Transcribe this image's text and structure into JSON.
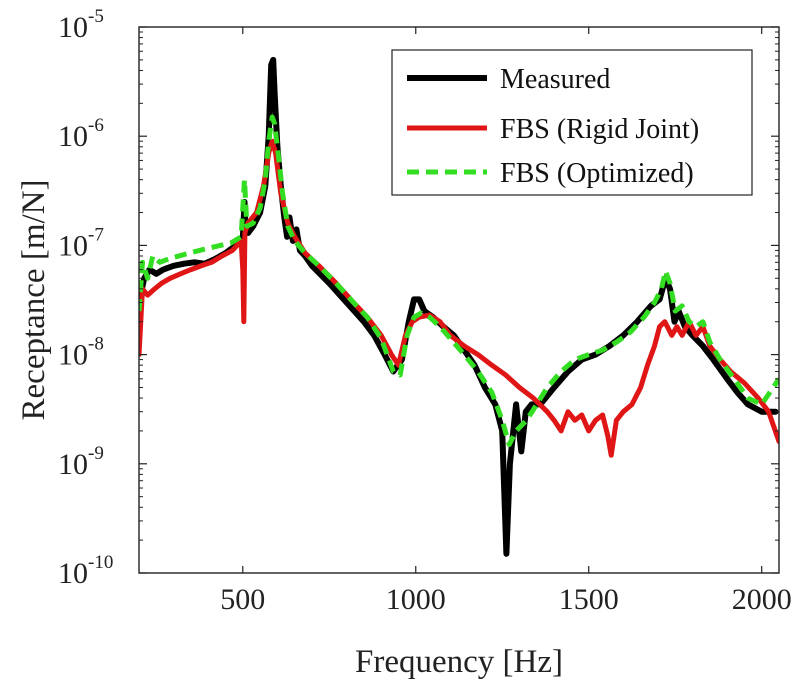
{
  "chart_data": {
    "type": "line",
    "xlabel": "Frequency [Hz]",
    "ylabel": "Receptance [m/N]",
    "xlim": [
      200,
      2050
    ],
    "ylim": [
      1e-10,
      1e-05
    ],
    "yscale": "log",
    "grid": false,
    "legend_position": "top-right",
    "x_ticks": [
      500,
      1000,
      1500,
      2000
    ],
    "y_ticks": [
      {
        "value": 1e-10,
        "base": "10",
        "exp": "-10"
      },
      {
        "value": 1e-09,
        "base": "10",
        "exp": "-9"
      },
      {
        "value": 1e-08,
        "base": "10",
        "exp": "-8"
      },
      {
        "value": 1e-07,
        "base": "10",
        "exp": "-7"
      },
      {
        "value": 1e-06,
        "base": "10",
        "exp": "-6"
      },
      {
        "value": 1e-05,
        "base": "10",
        "exp": "-5"
      }
    ],
    "series": [
      {
        "name": "Measured",
        "color": "#000000",
        "style": "solid",
        "points": [
          [
            200,
            3e-08
          ],
          [
            215,
            5e-08
          ],
          [
            230,
            6e-08
          ],
          [
            250,
            5.5e-08
          ],
          [
            270,
            6e-08
          ],
          [
            300,
            6.5e-08
          ],
          [
            330,
            6.8e-08
          ],
          [
            360,
            7e-08
          ],
          [
            390,
            6.8e-08
          ],
          [
            420,
            7.5e-08
          ],
          [
            450,
            8.5e-08
          ],
          [
            480,
            1e-07
          ],
          [
            500,
            1.15e-07
          ],
          [
            505,
            2.5e-07
          ],
          [
            508,
            1.3e-07
          ],
          [
            515,
            1.3e-07
          ],
          [
            530,
            1.5e-07
          ],
          [
            550,
            2e-07
          ],
          [
            565,
            3.5e-07
          ],
          [
            575,
            1e-06
          ],
          [
            582,
            4.5e-06
          ],
          [
            588,
            5e-06
          ],
          [
            592,
            2.5e-06
          ],
          [
            600,
            8e-07
          ],
          [
            610,
            3.5e-07
          ],
          [
            620,
            1.8e-07
          ],
          [
            628,
            1.2e-07
          ],
          [
            635,
            1.8e-07
          ],
          [
            645,
            1.1e-07
          ],
          [
            655,
            1.4e-07
          ],
          [
            665,
            9e-08
          ],
          [
            680,
            8e-08
          ],
          [
            700,
            6.5e-08
          ],
          [
            750,
            4.5e-08
          ],
          [
            800,
            3e-08
          ],
          [
            850,
            2e-08
          ],
          [
            880,
            1.5e-08
          ],
          [
            910,
            1e-08
          ],
          [
            935,
            7e-09
          ],
          [
            960,
            9e-09
          ],
          [
            980,
            2e-08
          ],
          [
            995,
            3.2e-08
          ],
          [
            1010,
            3.2e-08
          ],
          [
            1025,
            2.5e-08
          ],
          [
            1050,
            2.2e-08
          ],
          [
            1080,
            1.8e-08
          ],
          [
            1110,
            1.5e-08
          ],
          [
            1140,
            1.1e-08
          ],
          [
            1170,
            8e-09
          ],
          [
            1200,
            5e-09
          ],
          [
            1230,
            3.5e-09
          ],
          [
            1250,
            2e-09
          ],
          [
            1262,
            1.5e-10
          ],
          [
            1272,
            1e-09
          ],
          [
            1290,
            3.5e-09
          ],
          [
            1305,
            1.3e-09
          ],
          [
            1318,
            3e-09
          ],
          [
            1335,
            3.5e-09
          ],
          [
            1360,
            3.5e-09
          ],
          [
            1400,
            5e-09
          ],
          [
            1440,
            7e-09
          ],
          [
            1480,
            9e-09
          ],
          [
            1520,
            1e-08
          ],
          [
            1560,
            1.2e-08
          ],
          [
            1600,
            1.5e-08
          ],
          [
            1640,
            2e-08
          ],
          [
            1680,
            2.8e-08
          ],
          [
            1705,
            3.2e-08
          ],
          [
            1722,
            5e-08
          ],
          [
            1735,
            4e-08
          ],
          [
            1748,
            2e-08
          ],
          [
            1760,
            2.5e-08
          ],
          [
            1778,
            1.8e-08
          ],
          [
            1800,
            1.5e-08
          ],
          [
            1830,
            1.2e-08
          ],
          [
            1860,
            9e-09
          ],
          [
            1900,
            6e-09
          ],
          [
            1930,
            4.5e-09
          ],
          [
            1960,
            3.5e-09
          ],
          [
            2000,
            3e-09
          ],
          [
            2040,
            3e-09
          ]
        ]
      },
      {
        "name": "FBS (Rigid Joint)",
        "color": "#e01515",
        "style": "solid",
        "points": [
          [
            200,
            1e-08
          ],
          [
            210,
            4e-08
          ],
          [
            225,
            3.5e-08
          ],
          [
            245,
            4e-08
          ],
          [
            265,
            4.5e-08
          ],
          [
            290,
            5e-08
          ],
          [
            320,
            5.5e-08
          ],
          [
            350,
            6e-08
          ],
          [
            380,
            6.5e-08
          ],
          [
            410,
            7e-08
          ],
          [
            440,
            8e-08
          ],
          [
            470,
            9e-08
          ],
          [
            495,
            1.1e-07
          ],
          [
            500,
            6e-08
          ],
          [
            503,
            2e-08
          ],
          [
            506,
            1.3e-07
          ],
          [
            515,
            1.6e-07
          ],
          [
            540,
            2e-07
          ],
          [
            560,
            3.5e-07
          ],
          [
            575,
            7e-07
          ],
          [
            585,
            9e-07
          ],
          [
            595,
            7e-07
          ],
          [
            610,
            3e-07
          ],
          [
            630,
            1.6e-07
          ],
          [
            650,
            1.2e-07
          ],
          [
            680,
            8.5e-08
          ],
          [
            720,
            6.5e-08
          ],
          [
            770,
            4.5e-08
          ],
          [
            820,
            3e-08
          ],
          [
            860,
            2.2e-08
          ],
          [
            900,
            1.5e-08
          ],
          [
            930,
            1e-08
          ],
          [
            950,
            8e-09
          ],
          [
            970,
            1.5e-08
          ],
          [
            990,
            2e-08
          ],
          [
            1010,
            2.2e-08
          ],
          [
            1040,
            2.3e-08
          ],
          [
            1070,
            2e-08
          ],
          [
            1100,
            1.5e-08
          ],
          [
            1140,
            1.2e-08
          ],
          [
            1180,
            1e-08
          ],
          [
            1220,
            8e-09
          ],
          [
            1260,
            6.5e-09
          ],
          [
            1300,
            5e-09
          ],
          [
            1340,
            4e-09
          ],
          [
            1380,
            3e-09
          ],
          [
            1400,
            2.5e-09
          ],
          [
            1420,
            2e-09
          ],
          [
            1440,
            3e-09
          ],
          [
            1460,
            2.5e-09
          ],
          [
            1480,
            2.8e-09
          ],
          [
            1500,
            2e-09
          ],
          [
            1520,
            2.5e-09
          ],
          [
            1540,
            2.8e-09
          ],
          [
            1555,
            1.8e-09
          ],
          [
            1565,
            1.2e-09
          ],
          [
            1580,
            2.5e-09
          ],
          [
            1600,
            3e-09
          ],
          [
            1625,
            3.5e-09
          ],
          [
            1650,
            5e-09
          ],
          [
            1670,
            8e-09
          ],
          [
            1690,
            1.2e-08
          ],
          [
            1705,
            1.8e-08
          ],
          [
            1720,
            2e-08
          ],
          [
            1740,
            1.5e-08
          ],
          [
            1755,
            1.8e-08
          ],
          [
            1770,
            1.5e-08
          ],
          [
            1790,
            2e-08
          ],
          [
            1810,
            1.5e-08
          ],
          [
            1830,
            1.8e-08
          ],
          [
            1850,
            1.2e-08
          ],
          [
            1880,
            9e-09
          ],
          [
            1910,
            7e-09
          ],
          [
            1950,
            5.5e-09
          ],
          [
            1990,
            4e-09
          ],
          [
            2020,
            3e-09
          ],
          [
            2050,
            1.6e-09
          ]
        ]
      },
      {
        "name": "FBS (Optimized)",
        "color": "#33dd22",
        "style": "dashed",
        "points": [
          [
            200,
            2.5e-08
          ],
          [
            210,
            7e-08
          ],
          [
            225,
            5e-08
          ],
          [
            240,
            8e-08
          ],
          [
            260,
            7e-08
          ],
          [
            285,
            7.5e-08
          ],
          [
            315,
            8e-08
          ],
          [
            345,
            8.5e-08
          ],
          [
            375,
            9e-08
          ],
          [
            405,
            9.5e-08
          ],
          [
            435,
            1e-07
          ],
          [
            465,
            1.05e-07
          ],
          [
            495,
            1.2e-07
          ],
          [
            505,
            4e-07
          ],
          [
            512,
            1.5e-07
          ],
          [
            530,
            1.6e-07
          ],
          [
            550,
            2.2e-07
          ],
          [
            565,
            4e-07
          ],
          [
            575,
            9e-07
          ],
          [
            585,
            1.5e-06
          ],
          [
            592,
            1.3e-06
          ],
          [
            602,
            7e-07
          ],
          [
            615,
            3e-07
          ],
          [
            630,
            1.5e-07
          ],
          [
            650,
            1.1e-07
          ],
          [
            680,
            8.5e-08
          ],
          [
            720,
            6.5e-08
          ],
          [
            770,
            4.5e-08
          ],
          [
            820,
            3e-08
          ],
          [
            860,
            2.2e-08
          ],
          [
            900,
            1.4e-08
          ],
          [
            935,
            7e-09
          ],
          [
            955,
            6.5e-09
          ],
          [
            975,
            1.5e-08
          ],
          [
            995,
            2.2e-08
          ],
          [
            1015,
            2.4e-08
          ],
          [
            1040,
            2.2e-08
          ],
          [
            1070,
            1.8e-08
          ],
          [
            1100,
            1.4e-08
          ],
          [
            1140,
            1e-08
          ],
          [
            1180,
            7e-09
          ],
          [
            1220,
            4.5e-09
          ],
          [
            1250,
            2.5e-09
          ],
          [
            1270,
            1.5e-09
          ],
          [
            1290,
            2e-09
          ],
          [
            1320,
            2.5e-09
          ],
          [
            1350,
            3.5e-09
          ],
          [
            1380,
            5e-09
          ],
          [
            1420,
            7e-09
          ],
          [
            1460,
            9e-09
          ],
          [
            1500,
            1e-08
          ],
          [
            1540,
            1.1e-08
          ],
          [
            1580,
            1.3e-08
          ],
          [
            1620,
            1.6e-08
          ],
          [
            1660,
            2.2e-08
          ],
          [
            1690,
            3e-08
          ],
          [
            1710,
            4e-08
          ],
          [
            1722,
            5.8e-08
          ],
          [
            1735,
            4.5e-08
          ],
          [
            1750,
            2.5e-08
          ],
          [
            1770,
            2.8e-08
          ],
          [
            1790,
            2e-08
          ],
          [
            1810,
            1.8e-08
          ],
          [
            1830,
            2e-08
          ],
          [
            1850,
            1.3e-08
          ],
          [
            1880,
            9e-09
          ],
          [
            1920,
            6e-09
          ],
          [
            1960,
            4e-09
          ],
          [
            2000,
            3.5e-09
          ],
          [
            2050,
            6e-09
          ]
        ]
      }
    ]
  }
}
